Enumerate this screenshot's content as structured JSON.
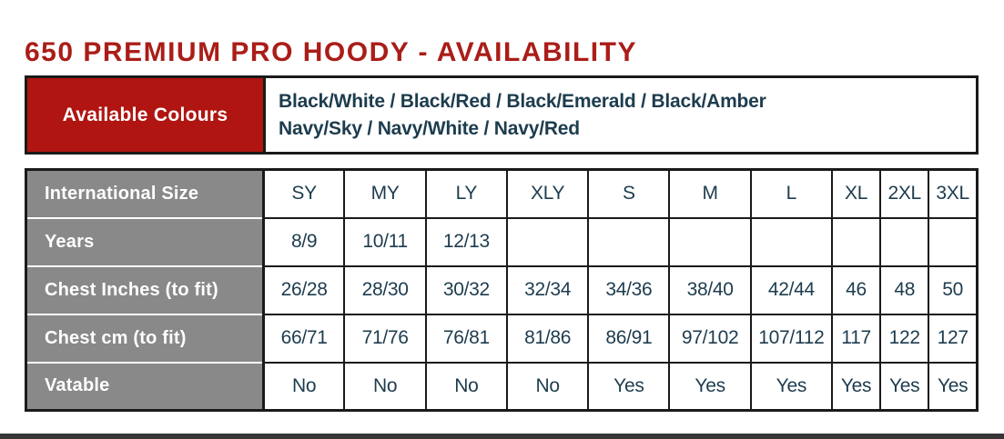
{
  "page": {
    "title": "650 PREMIUM PRO HOODY - AVAILABILITY"
  },
  "colors": {
    "title_red": "#aa1d18",
    "label_red": "#b01511",
    "header_gray": "#898989",
    "text_navy": "#1d3c4e",
    "border_black": "#1a1a1a",
    "footer_bar": "#363636"
  },
  "colours_table": {
    "label": "Available Colours",
    "line1": "Black/White / Black/Red / Black/Emerald / Black/Amber",
    "line2": "Navy/Sky / Navy/White / Navy/Red"
  },
  "size_table": {
    "rows": [
      {
        "label": "International Size",
        "cells": [
          "SY",
          "MY",
          "LY",
          "XLY",
          "S",
          "M",
          "L",
          "XL",
          "2XL",
          "3XL"
        ]
      },
      {
        "label": "Years",
        "cells": [
          "8/9",
          "10/11",
          "12/13",
          "",
          "",
          "",
          "",
          "",
          "",
          ""
        ]
      },
      {
        "label": "Chest Inches (to fit)",
        "cells": [
          "26/28",
          "28/30",
          "30/32",
          "32/34",
          "34/36",
          "38/40",
          "42/44",
          "46",
          "48",
          "50"
        ]
      },
      {
        "label": "Chest cm (to fit)",
        "cells": [
          "66/71",
          "71/76",
          "76/81",
          "81/86",
          "86/91",
          "97/102",
          "107/112",
          "117",
          "122",
          "127"
        ]
      },
      {
        "label": "Vatable",
        "cells": [
          "No",
          "No",
          "No",
          "No",
          "Yes",
          "Yes",
          "Yes",
          "Yes",
          "Yes",
          "Yes"
        ]
      }
    ]
  }
}
